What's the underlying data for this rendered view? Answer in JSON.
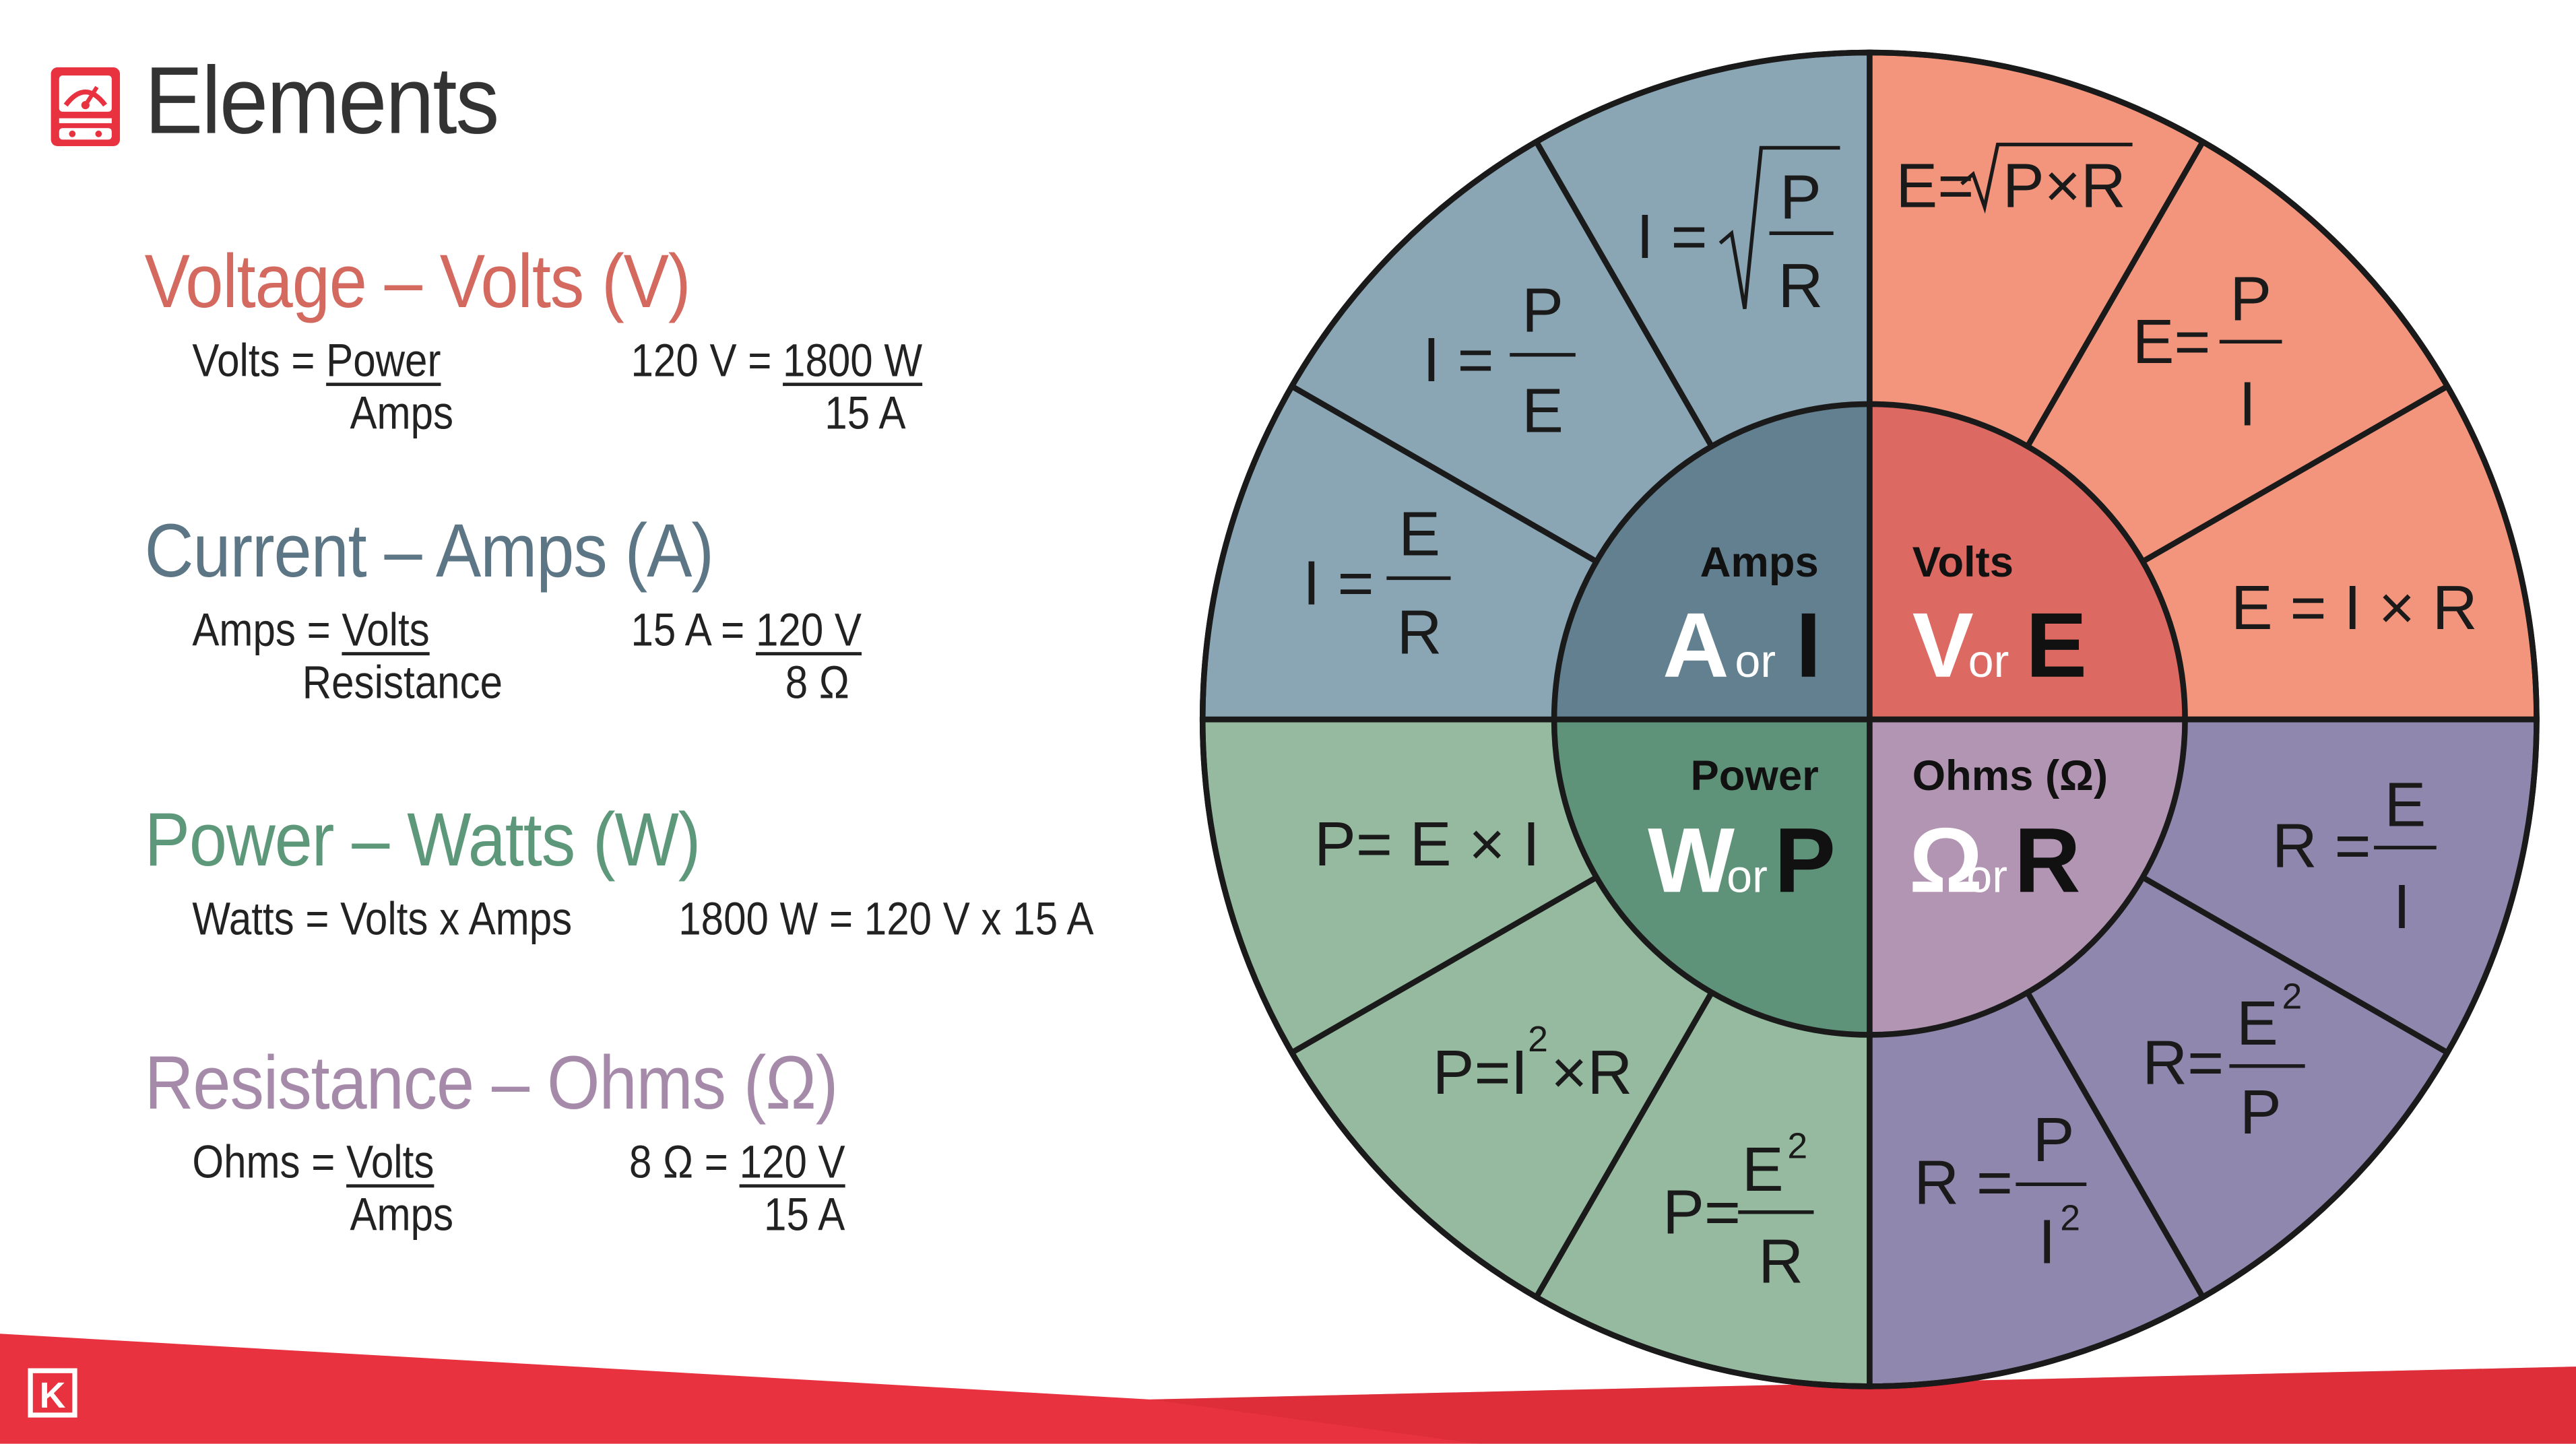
{
  "header": {
    "title": "Elements"
  },
  "sections": {
    "voltage": {
      "title": "Voltage – Volts (V)",
      "formula_lhs": "Volts = ",
      "formula_num": "Power",
      "formula_den": "Amps",
      "example_lhs": "120 V = ",
      "example_num": "1800 W",
      "example_den": "15 A"
    },
    "current": {
      "title": "Current – Amps (A)",
      "formula_lhs": "Amps = ",
      "formula_num": "Volts",
      "formula_den": "Resistance",
      "example_lhs": "15 A = ",
      "example_num": "120 V",
      "example_den": "8 Ω"
    },
    "power": {
      "title": "Power – Watts (W)",
      "formula": "Watts = Volts x Amps",
      "example": "1800 W = 120 V x 15 A"
    },
    "resistance": {
      "title": "Resistance – Ohms (Ω)",
      "formula_lhs": "Ohms = ",
      "formula_num": "Volts",
      "formula_den": "Amps",
      "example_lhs": "8 Ω = ",
      "example_num": "120 V",
      "example_den": "15 A"
    }
  },
  "wheel": {
    "center": {
      "amps": {
        "label": "Amps",
        "sym1": "A",
        "or": "or",
        "sym2": "I"
      },
      "volts": {
        "label": "Volts",
        "sym1": "V",
        "or": "or",
        "sym2": "E"
      },
      "power": {
        "label": "Power",
        "sym1": "W",
        "or": "or",
        "sym2": "P"
      },
      "ohms": {
        "label": "Ohms (Ω)",
        "sym1": "Ω",
        "or": "or",
        "sym2": "R"
      }
    },
    "common": {
      "eq": "=",
      "times": "×",
      "sq": "2"
    },
    "letters": {
      "I": "I",
      "E": "E",
      "P": "P",
      "R": "R"
    }
  },
  "colors": {
    "volts_outer": "#f2957c",
    "volts_inner": "#dc6a62",
    "amps_outer": "#8aa5b4",
    "amps_inner": "#62808f",
    "power_outer": "#95ba9f",
    "power_inner": "#5e937a",
    "ohms_outer": "#8f87ad",
    "ohms_inner": "#b294b3",
    "brand_red": "#e8323f"
  },
  "footer": {
    "logo": "K"
  }
}
